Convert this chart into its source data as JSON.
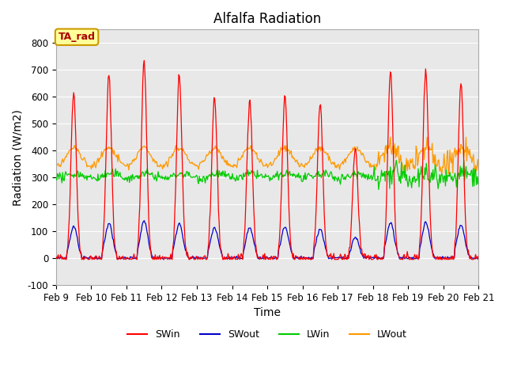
{
  "title": "Alfalfa Radiation",
  "xlabel": "Time",
  "ylabel": "Radiation (W/m2)",
  "ylim": [
    -100,
    850
  ],
  "yticks": [
    -100,
    0,
    100,
    200,
    300,
    400,
    500,
    600,
    700,
    800
  ],
  "plot_bg_color": "#e8e8e8",
  "fig_bg_color": "#ffffff",
  "grid_color": "white",
  "annotation_text": "TA_rad",
  "annotation_bg": "#ffff99",
  "annotation_border": "#cc9900",
  "num_days": 12,
  "series_colors": {
    "SWin": "#ff0000",
    "SWout": "#0000cc",
    "LWin": "#00cc00",
    "LWout": "#ff9900"
  },
  "day_peaks_SWin": [
    620,
    680,
    730,
    680,
    600,
    595,
    600,
    575,
    410,
    700,
    700,
    650
  ],
  "LWin_base": 305,
  "LWout_base": 335,
  "seed": 42
}
